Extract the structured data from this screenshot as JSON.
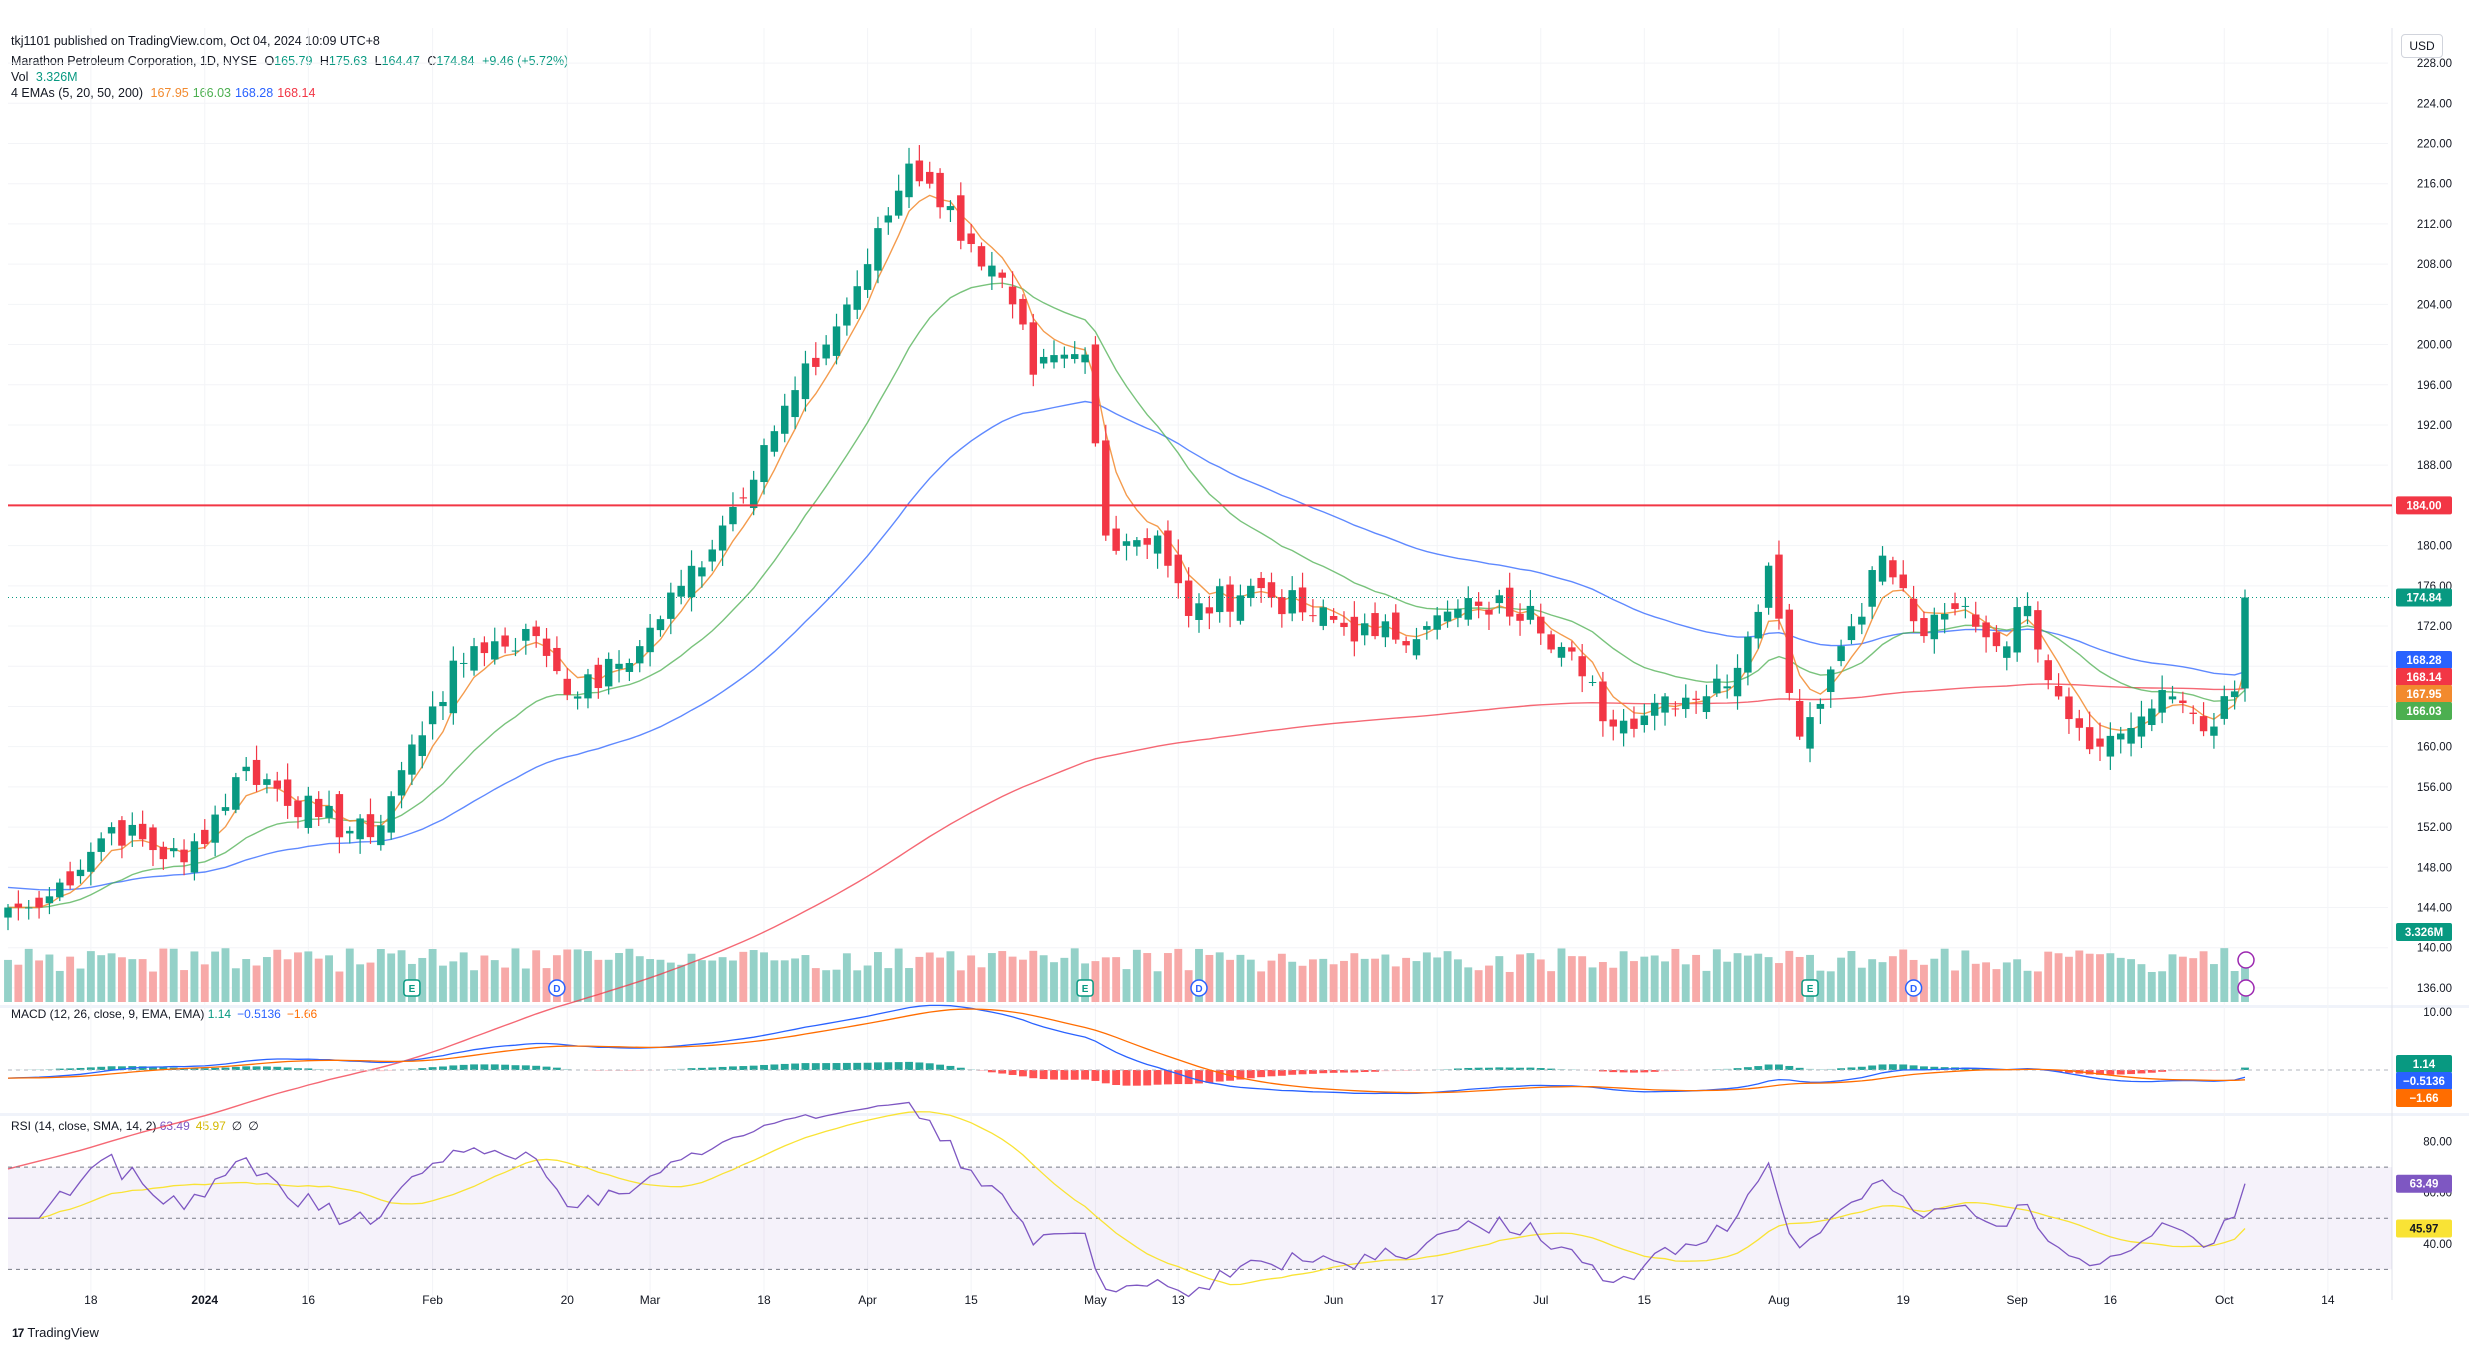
{
  "header": {
    "published": "tkj1101 published on TradingView.com, Oct 04, 2024 10:09 UTC+8",
    "symbol_line": "Marathon Petroleum Corporation, 1D, NYSE",
    "ohlc": {
      "o_label": "O",
      "o": "165.79",
      "h_label": "H",
      "h": "175.63",
      "l_label": "L",
      "l": "164.47",
      "c_label": "C",
      "c": "174.84",
      "change": "+9.46 (+5.72%)"
    },
    "vol_label": "Vol",
    "vol_value": "3.326M",
    "ema_label": "4 EMAs (5, 20, 50, 200)",
    "ema_values": [
      "167.95",
      "166.03",
      "168.28",
      "168.14"
    ]
  },
  "currency_button": "USD",
  "macd_legend": {
    "label": "MACD (12, 26, close, 9, EMA, EMA)",
    "values": [
      "1.14",
      "−0.5136",
      "−1.66"
    ]
  },
  "rsi_legend": {
    "label": "RSI (14, close, SMA, 14, 2)",
    "values": [
      "63.49",
      "45.97",
      "∅",
      "∅"
    ]
  },
  "footer_brand": "TradingView",
  "colors": {
    "up": "#089981",
    "down": "#f23645",
    "up_vol": "#94d1c8",
    "down_vol": "#f7a9a8",
    "ema5": "#f28a2e",
    "ema20": "#4caf50",
    "ema50": "#2962ff",
    "ema200": "#f23645",
    "macd": "#2962ff",
    "signal": "#ff6d00",
    "rsi": "#7e57c2",
    "rsi_ma": "#f9e335",
    "hline": "#f23645"
  },
  "chart_data": [
    {
      "type": "candlestick",
      "title": "Marathon Petroleum Corporation, 1D, NYSE",
      "y_axis_ticks": [
        "228.00",
        "224.00",
        "220.00",
        "216.00",
        "212.00",
        "208.00",
        "204.00",
        "200.00",
        "196.00",
        "192.00",
        "188.00",
        "184.00",
        "180.00",
        "176.00",
        "172.00",
        "168.00",
        "164.00",
        "160.00",
        "156.00",
        "152.00",
        "148.00",
        "144.00",
        "140.00",
        "136.00"
      ],
      "ylim": [
        134.5,
        229.5
      ],
      "x_axis_labels": [
        "18",
        "2024",
        "16",
        "Feb",
        "20",
        "Mar",
        "18",
        "Apr",
        "15",
        "May",
        "13",
        "Jun",
        "17",
        "Jul",
        "15",
        "Aug",
        "19",
        "Sep",
        "16",
        "Oct",
        "14"
      ],
      "horizontal_line": {
        "value": 184.0,
        "label": "184.00"
      },
      "last_price": {
        "value": 174.84,
        "label": "174.84"
      },
      "ema_badges": [
        {
          "name": "EMA 50",
          "value": 168.28,
          "label": "168.28"
        },
        {
          "name": "EMA 200",
          "value": 168.14,
          "label": "168.14"
        },
        {
          "name": "EMA 5",
          "value": 167.95,
          "label": "167.95"
        },
        {
          "name": "EMA 20",
          "value": 166.03,
          "label": "166.03"
        }
      ],
      "volume_badge": "3.326M",
      "price_keypoints": [
        {
          "date": "2023-12-11",
          "close": 144.0
        },
        {
          "date": "2023-12-20",
          "close": 152.0
        },
        {
          "date": "2023-12-29",
          "close": 148.5
        },
        {
          "date": "2024-01-08",
          "close": 158.0
        },
        {
          "date": "2024-01-17",
          "close": 153.0
        },
        {
          "date": "2024-01-24",
          "close": 151.0
        },
        {
          "date": "2024-02-01",
          "close": 164.0
        },
        {
          "date": "2024-02-07",
          "close": 170.0
        },
        {
          "date": "2024-02-15",
          "close": 171.0
        },
        {
          "date": "2024-02-21",
          "close": 165.0
        },
        {
          "date": "2024-02-29",
          "close": 170.0
        },
        {
          "date": "2024-03-06",
          "close": 176.0
        },
        {
          "date": "2024-03-12",
          "close": 182.0
        },
        {
          "date": "2024-03-18",
          "close": 190.0
        },
        {
          "date": "2024-03-26",
          "close": 200.0
        },
        {
          "date": "2024-04-01",
          "close": 208.0
        },
        {
          "date": "2024-04-05",
          "close": 218.0
        },
        {
          "date": "2024-04-09",
          "close": 216.0
        },
        {
          "date": "2024-04-15",
          "close": 210.0
        },
        {
          "date": "2024-04-19",
          "close": 204.0
        },
        {
          "date": "2024-04-23",
          "close": 197.0
        },
        {
          "date": "2024-04-30",
          "close": 199.0
        },
        {
          "date": "2024-05-02",
          "close": 181.0
        },
        {
          "date": "2024-05-09",
          "close": 181.0
        },
        {
          "date": "2024-05-14",
          "close": 173.0
        },
        {
          "date": "2024-05-22",
          "close": 176.0
        },
        {
          "date": "2024-05-30",
          "close": 173.0
        },
        {
          "date": "2024-06-07",
          "close": 171.0
        },
        {
          "date": "2024-06-14",
          "close": 172.0
        },
        {
          "date": "2024-06-21",
          "close": 174.0
        },
        {
          "date": "2024-06-28",
          "close": 174.0
        },
        {
          "date": "2024-07-05",
          "close": 167.0
        },
        {
          "date": "2024-07-10",
          "close": 162.0
        },
        {
          "date": "2024-07-17",
          "close": 165.0
        },
        {
          "date": "2024-07-25",
          "close": 166.0
        },
        {
          "date": "2024-07-31",
          "close": 178.0
        },
        {
          "date": "2024-08-05",
          "close": 161.0
        },
        {
          "date": "2024-08-09",
          "close": 170.0
        },
        {
          "date": "2024-08-15",
          "close": 179.0
        },
        {
          "date": "2024-08-21",
          "close": 171.0
        },
        {
          "date": "2024-08-27",
          "close": 174.0
        },
        {
          "date": "2024-08-30",
          "close": 170.0
        },
        {
          "date": "2024-09-04",
          "close": 174.0
        },
        {
          "date": "2024-09-09",
          "close": 165.0
        },
        {
          "date": "2024-09-13",
          "close": 160.0
        },
        {
          "date": "2024-09-19",
          "close": 163.0
        },
        {
          "date": "2024-09-24",
          "close": 165.0
        },
        {
          "date": "2024-09-30",
          "close": 162.0
        },
        {
          "date": "2024-10-02",
          "close": 165.5
        },
        {
          "date": "2024-10-03",
          "close": 174.84
        }
      ]
    },
    {
      "type": "line",
      "title": "MACD (12, 26, close, 9, EMA, EMA)",
      "y_axis_ticks": [
        "10.00"
      ],
      "badges": [
        {
          "label": "1.14",
          "value": 1.14
        },
        {
          "label": "−0.5136",
          "value": -0.5136
        },
        {
          "label": "−1.66",
          "value": -1.66
        }
      ]
    },
    {
      "type": "line",
      "title": "RSI (14, close, SMA, 14, 2)",
      "y_axis_ticks": [
        "80.00",
        "60.00",
        "40.00"
      ],
      "bands": [
        70,
        30
      ],
      "badges": [
        {
          "label": "63.49",
          "value": 63.49
        },
        {
          "label": "45.97",
          "value": 45.97
        }
      ]
    }
  ]
}
